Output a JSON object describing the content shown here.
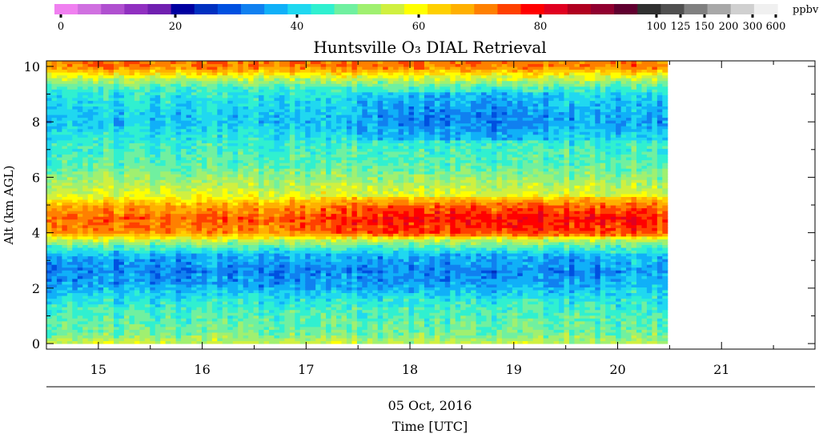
{
  "chart_data": {
    "type": "heatmap",
    "title": "Huntsville O₃ DIAL Retrieval",
    "date_label": "05 Oct, 2016",
    "xlabel": "Time [UTC]",
    "ylabel": "Alt (km AGL)",
    "x_ticks": [
      "15",
      "16",
      "17",
      "18",
      "19",
      "20",
      "21"
    ],
    "y_ticks": [
      "0",
      "2",
      "4",
      "6",
      "8",
      "10"
    ],
    "xlim": [
      14.5,
      21.9
    ],
    "ylim": [
      -0.2,
      10.2
    ],
    "data_xlim": [
      14.5,
      20.48
    ],
    "colorbar": {
      "unit": "ppbv",
      "tick_labels": [
        "0",
        "20",
        "40",
        "60",
        "80",
        "100",
        "125",
        "150",
        "200",
        "300",
        "600"
      ],
      "colors": [
        "#f080f0",
        "#d070e0",
        "#b050d0",
        "#9030c0",
        "#7020b0",
        "#0000a0",
        "#0030c0",
        "#0050e0",
        "#1080f0",
        "#10b0f8",
        "#20d8f0",
        "#30f0d0",
        "#70f0a0",
        "#a0f070",
        "#d0f040",
        "#ffff00",
        "#ffd000",
        "#ffb000",
        "#ff8000",
        "#ff4000",
        "#ff0000",
        "#e00020",
        "#b00020",
        "#900030",
        "#600030",
        "#303030",
        "#505050",
        "#808080",
        "#a8a8a8",
        "#d0d0d0",
        "#f0f0f0"
      ]
    },
    "profile": [
      {
        "alt": 0.0,
        "ppbv": 57
      },
      {
        "alt": 0.4,
        "ppbv": 50
      },
      {
        "alt": 1.0,
        "ppbv": 48
      },
      {
        "alt": 1.6,
        "ppbv": 44
      },
      {
        "alt": 2.0,
        "ppbv": 38
      },
      {
        "alt": 2.6,
        "ppbv": 34
      },
      {
        "alt": 3.2,
        "ppbv": 38
      },
      {
        "alt": 3.7,
        "ppbv": 55
      },
      {
        "alt": 4.0,
        "ppbv": 72
      },
      {
        "alt": 4.5,
        "ppbv": 76
      },
      {
        "alt": 5.0,
        "ppbv": 70
      },
      {
        "alt": 5.3,
        "ppbv": 60
      },
      {
        "alt": 5.8,
        "ppbv": 55
      },
      {
        "alt": 6.4,
        "ppbv": 49
      },
      {
        "alt": 7.2,
        "ppbv": 46
      },
      {
        "alt": 8.0,
        "ppbv": 40
      },
      {
        "alt": 8.6,
        "ppbv": 42
      },
      {
        "alt": 9.2,
        "ppbv": 46
      },
      {
        "alt": 9.6,
        "ppbv": 58
      },
      {
        "alt": 10.0,
        "ppbv": 74
      }
    ]
  }
}
